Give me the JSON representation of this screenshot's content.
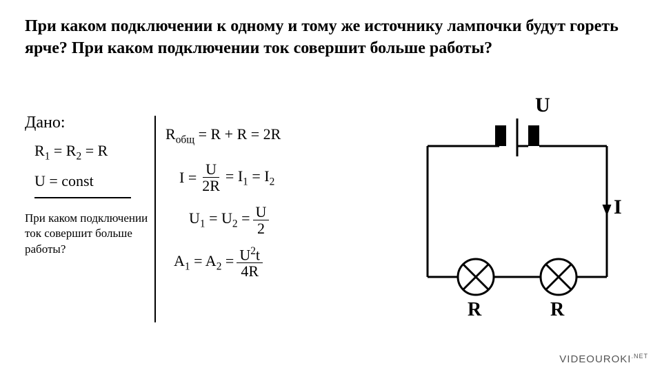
{
  "title": "При каком подключении к одному и тому же источнику лампочки будут гореть ярче? При каком подключении ток совершит больше работы?",
  "given": {
    "label": "Дано:",
    "eq1_html": "R<span class='sub'>1</span> = R<span class='sub'>2</span> = R",
    "eq2_html": "U = const",
    "question": "При каком подключении ток совершит больше работы?"
  },
  "solution": {
    "r_total_html": "R<span class='sub'>общ</span> = R + R = 2R",
    "i_prefix": "I =",
    "i_num": "U",
    "i_den": "2R",
    "i_suffix_html": "= I<span class='sub'>1</span> = I<span class='sub'>2</span>",
    "u_prefix_html": "U<span class='sub'>1</span> = U<span class='sub'>2</span> =",
    "u_num": "U",
    "u_den": "2",
    "a_prefix_html": "A<span class='sub'>1</span> = A<span class='sub'>2</span> =",
    "a_num_html": "U<span class='sup'>2</span>t",
    "a_den": "4R"
  },
  "circuit": {
    "label_U": "U",
    "label_I": "I",
    "label_R1": "R",
    "label_R2": "R",
    "stroke": "#000000",
    "stroke_width": 3,
    "lamp_radius": 26
  },
  "watermark": "VIDEOUROKI",
  "watermark_suffix": ".NET"
}
